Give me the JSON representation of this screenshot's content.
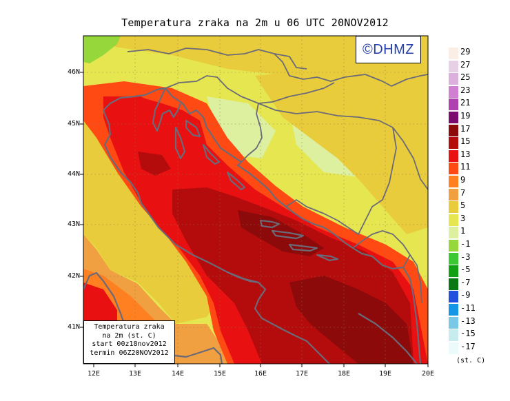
{
  "title": "Temperatura zraka na 2m u 06 UTC 20NOV2012",
  "logo_text": "©DHMZ",
  "lat_ticks": [
    "46N",
    "45N",
    "44N",
    "43N",
    "42N",
    "41N"
  ],
  "lon_ticks": [
    "12E",
    "13E",
    "14E",
    "15E",
    "16E",
    "17E",
    "18E",
    "19E",
    "20E"
  ],
  "info_box": {
    "line1": "Temperatura zraka",
    "line2": "na 2m (st. C)",
    "line3": "start 00z18nov2012",
    "line4": "termin 06Z20NOV2012"
  },
  "legend": {
    "labels": [
      "29",
      "27",
      "25",
      "23",
      "21",
      "19",
      "17",
      "15",
      "13",
      "11",
      "9",
      "7",
      "5",
      "3",
      "1",
      "-1",
      "-3",
      "-5",
      "-7",
      "-9",
      "-11",
      "-13",
      "-15",
      "-17"
    ],
    "colors": [
      "#fbeee4",
      "#e6d0e6",
      "#dcb0dc",
      "#d080d0",
      "#b040b0",
      "#7a0a6e",
      "#8c0a0a",
      "#b40c0c",
      "#e81010",
      "#ff4a14",
      "#ff8020",
      "#f0a040",
      "#e8cc3c",
      "#e6e650",
      "#dcf0a0",
      "#96d83c",
      "#3cc832",
      "#14a014",
      "#0a7814",
      "#2050dc",
      "#1496e6",
      "#78c8e6",
      "#c8ebf0",
      "#ebfafa"
    ],
    "units": "(st. C)"
  },
  "colors": {
    "sea_warm": "#e81010",
    "sea_hot": "#b40c0c",
    "sea_hottest": "#8c0a0a",
    "coast_orange": "#ff4a14",
    "inland_yellow": "#e8cc3c",
    "inland_light": "#e6e650",
    "cool_green": "#96d83c",
    "coastline": "#6a6a78",
    "logo_blue": "#2440a8"
  }
}
